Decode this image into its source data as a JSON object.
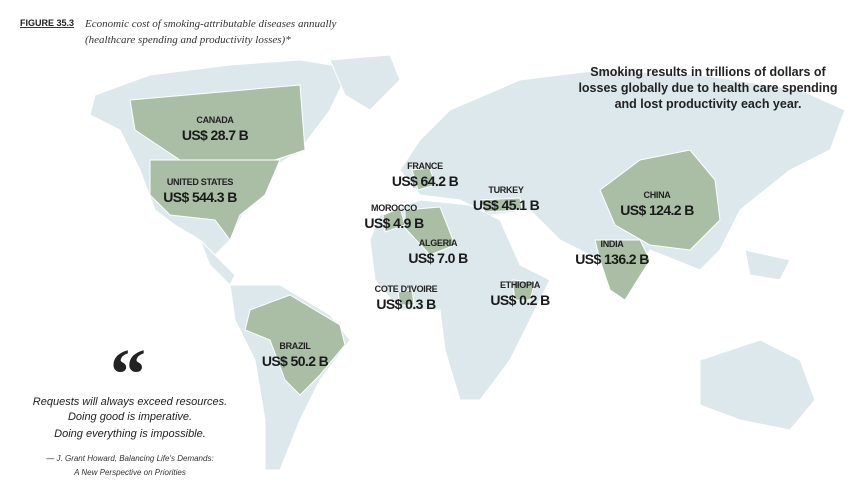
{
  "figure": {
    "label": "FIGURE 35.3",
    "caption": [
      "Economic cost of smoking-attributable diseases annually",
      "(healthcare spending and productivity losses)*"
    ]
  },
  "callout": [
    "Smoking results in trillions of dollars of",
    "losses globally due to health care spending",
    "and lost productivity each year."
  ],
  "countries": [
    {
      "name": "CANADA",
      "cost": "US$ 28.7 B"
    },
    {
      "name": "UNITED STATES",
      "cost": "US$ 544.3 B"
    },
    {
      "name": "FRANCE",
      "cost": "US$ 64.2 B"
    },
    {
      "name": "MOROCCO",
      "cost": "US$ 4.9 B"
    },
    {
      "name": "ALGERIA",
      "cost": "US$ 7.0 B"
    },
    {
      "name": "TURKEY",
      "cost": "US$ 45.1 B"
    },
    {
      "name": "COTE D'IVOIRE",
      "cost": "US$ 0.3 B"
    },
    {
      "name": "ETHIOPIA",
      "cost": "US$ 0.2 B"
    },
    {
      "name": "CHINA",
      "cost": "US$ 124.2 B"
    },
    {
      "name": "INDIA",
      "cost": "US$ 136.2 B"
    },
    {
      "name": "BRAZIL",
      "cost": "US$ 50.2 B"
    }
  ],
  "quote": {
    "mark": "“",
    "lines": [
      "Requests will always exceed resources.",
      "Doing good is imperative.",
      "Doing everything is impossible."
    ],
    "attribution": [
      "— J. Grant Howard, Balancing Life's Demands:",
      "A New Perspective on Priorities"
    ]
  }
}
